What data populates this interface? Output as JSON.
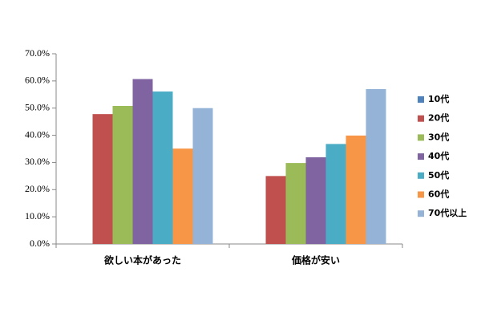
{
  "chart_data": {
    "type": "bar",
    "categories": [
      "欲しい本があった",
      "価格が安い"
    ],
    "series": [
      {
        "name": "10代",
        "color": "#4f81bd",
        "values": [
          0,
          0
        ]
      },
      {
        "name": "20代",
        "color": "#c0504d",
        "values": [
          47.8,
          25.0
        ]
      },
      {
        "name": "30代",
        "color": "#9bbb59",
        "values": [
          50.8,
          29.8
        ]
      },
      {
        "name": "40代",
        "color": "#8064a2",
        "values": [
          60.7,
          31.9
        ]
      },
      {
        "name": "50代",
        "color": "#4bacc6",
        "values": [
          56.1,
          36.8
        ]
      },
      {
        "name": "60代",
        "color": "#f79646",
        "values": [
          35.1,
          39.9
        ]
      },
      {
        "name": "70代以上",
        "color": "#95b3d7",
        "values": [
          50.0,
          57.0
        ]
      }
    ],
    "ylim": [
      0,
      70
    ],
    "yticks": [
      {
        "value": 0,
        "label": "0.0%"
      },
      {
        "value": 10,
        "label": "10.0%"
      },
      {
        "value": 20,
        "label": "20.0%"
      },
      {
        "value": 30,
        "label": "30.0%"
      },
      {
        "value": 40,
        "label": "40.0%"
      },
      {
        "value": 50,
        "label": "50.0%"
      },
      {
        "value": 60,
        "label": "60.0%"
      },
      {
        "value": 70,
        "label": "70.0%"
      }
    ],
    "grid": false,
    "legend": "right"
  }
}
